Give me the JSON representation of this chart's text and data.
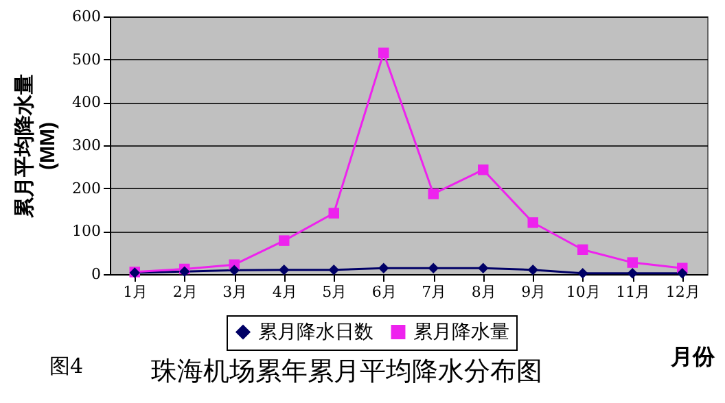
{
  "chart_data": {
    "type": "line",
    "title": "珠海机场累年累月平均降水分布图",
    "xlabel": "月份",
    "ylabel": "累月平均降水量\n(MM)",
    "annotations": [
      "图4"
    ],
    "categories": [
      "1月",
      "2月",
      "3月",
      "4月",
      "5月",
      "6月",
      "7月",
      "8月",
      "9月",
      "10月",
      "11月",
      "12月"
    ],
    "series": [
      {
        "name": "累月降水日数",
        "color": "#000066",
        "marker": "diamond",
        "values": [
          3,
          6,
          9,
          10,
          10,
          14,
          14,
          14,
          10,
          2,
          2,
          2
        ]
      },
      {
        "name": "累月降水量",
        "color": "#ee22ee",
        "marker": "square",
        "values": [
          5,
          12,
          22,
          78,
          142,
          515,
          187,
          243,
          120,
          57,
          27,
          14
        ]
      }
    ],
    "ylim": [
      0,
      600
    ],
    "yticks": [
      0,
      100,
      200,
      300,
      400,
      500,
      600
    ],
    "grid": "y",
    "legend": "bottom"
  }
}
